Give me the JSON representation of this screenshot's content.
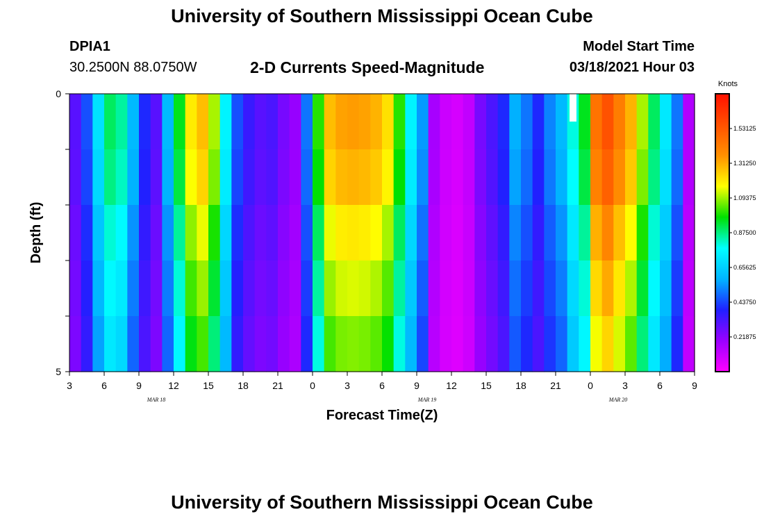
{
  "header": {
    "title_top": "University of Southern Mississippi Ocean Cube",
    "title_bottom": "University of Southern Mississippi Ocean Cube",
    "station_id": "DPIA1",
    "coordinates": "30.2500N 88.0750W",
    "subtitle": "2-D Currents Speed-Magnitude",
    "model_start_label": "Model Start Time",
    "model_start_time": "03/18/2021 Hour 03"
  },
  "chart_data": {
    "type": "heatmap",
    "title": "2-D Currents Speed-Magnitude",
    "xlabel": "Forecast Time(Z)",
    "ylabel": "Depth (ft)",
    "units": "Knots",
    "x_tick_labels": [
      "3",
      "6",
      "9",
      "12",
      "15",
      "18",
      "21",
      "0",
      "3",
      "6",
      "9",
      "12",
      "15",
      "18",
      "21",
      "0",
      "3",
      "6",
      "9"
    ],
    "date_labels": [
      {
        "text": "MAR 18",
        "at_tick": 2.5
      },
      {
        "text": "MAR 19",
        "at_tick": 10.3
      },
      {
        "text": "MAR 20",
        "at_tick": 15.8
      }
    ],
    "y_tick_labels": [
      "0",
      "5"
    ],
    "ylim": [
      0,
      5
    ],
    "hours": 54,
    "depth_levels": 5,
    "colorbar_ticks": [
      "0.21875",
      "0.43750",
      "0.65625",
      "0.87500",
      "1.09375",
      "1.31250",
      "1.53125"
    ],
    "colorbar_range": [
      0,
      1.75
    ],
    "colorbar_colors": [
      "#ff00ff",
      "#9a00ff",
      "#2020ff",
      "#00b4ff",
      "#00ffff",
      "#00e000",
      "#ffff00",
      "#ff9000",
      "#ff5000",
      "#ff1000"
    ],
    "speed_profile": [
      0.3,
      0.45,
      0.7,
      0.9,
      0.85,
      0.6,
      0.4,
      0.3,
      0.6,
      0.95,
      1.2,
      1.28,
      1.1,
      0.75,
      0.45,
      0.35,
      0.3,
      0.32,
      0.25,
      0.2,
      0.5,
      1.0,
      1.28,
      1.33,
      1.34,
      1.33,
      1.3,
      1.22,
      1.0,
      0.75,
      0.55,
      0.17,
      0.1,
      0.08,
      0.12,
      0.25,
      0.32,
      0.4,
      0.58,
      0.5,
      0.4,
      0.52,
      0.6,
      0.8,
      0.95,
      1.45,
      1.55,
      1.42,
      1.3,
      1.1,
      0.9,
      0.72,
      0.5,
      0.15
    ],
    "depth_factors": [
      1.0,
      0.97,
      0.9,
      0.85,
      0.8
    ],
    "missing_cell": {
      "hour": 43,
      "depth_level": 0
    }
  }
}
